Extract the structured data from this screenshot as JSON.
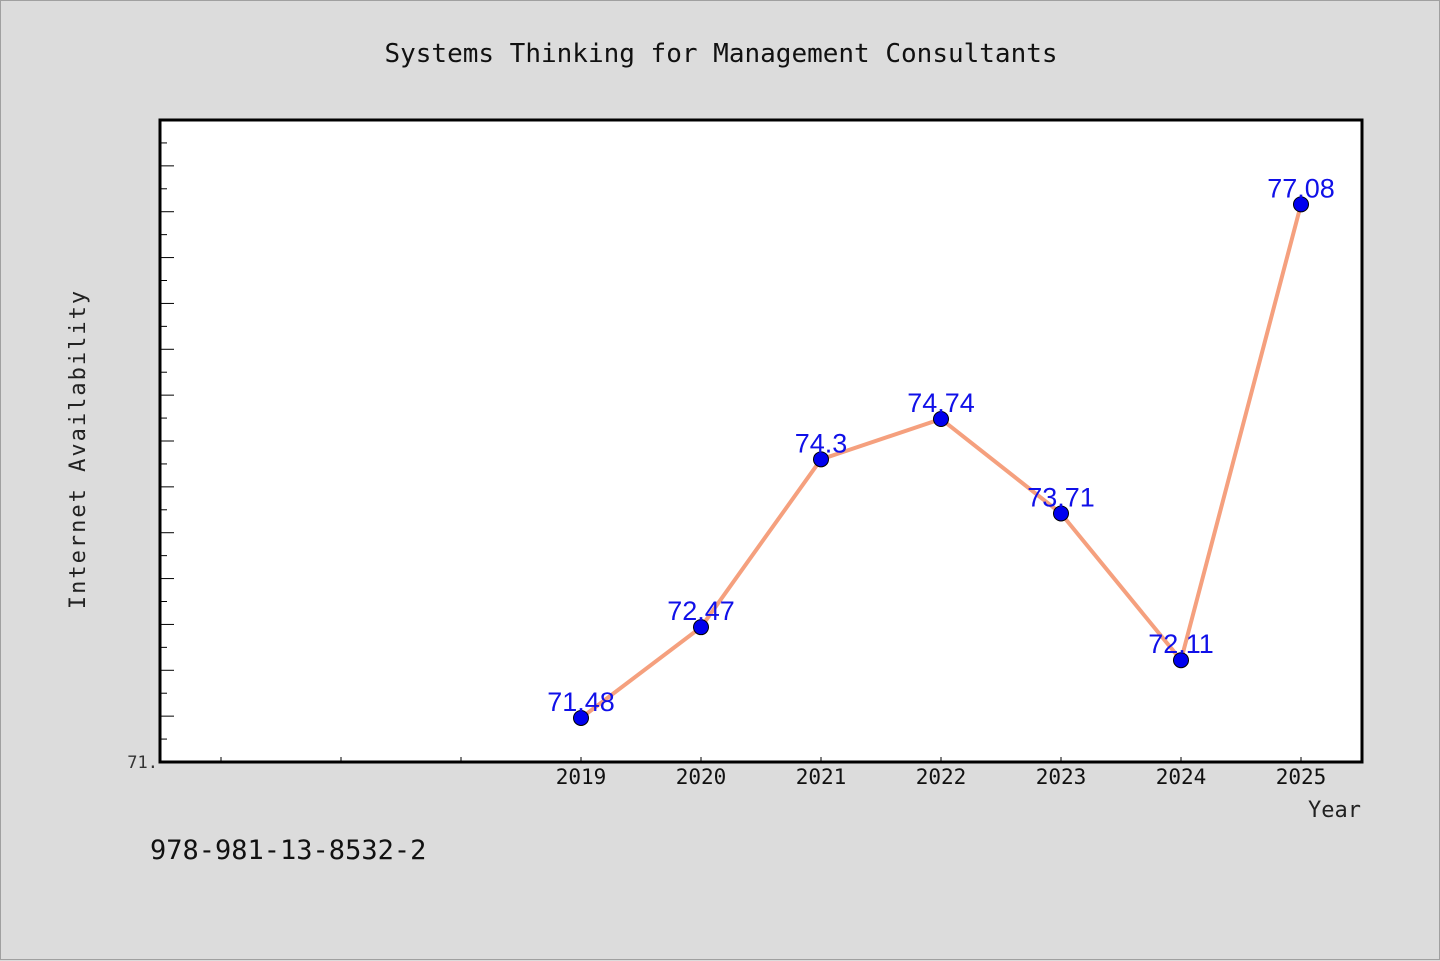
{
  "chart_data": {
    "type": "line",
    "title": "Systems Thinking for Management Consultants",
    "xlabel": "Year",
    "ylabel": "Internet Availability",
    "categories": [
      "2019",
      "2020",
      "2021",
      "2022",
      "2023",
      "2024",
      "2025"
    ],
    "series": [
      {
        "values": [
          71.48,
          72.47,
          74.3,
          74.74,
          73.71,
          72.11,
          77.08
        ],
        "labels": [
          "71.48",
          "72.47",
          "74.3",
          "74.74",
          "73.71",
          "72.11",
          "77.08"
        ]
      }
    ],
    "ylim": [
      71.0,
      78.0
    ],
    "y_tick_labels": [
      {
        "value": 71.0,
        "label": "71."
      }
    ],
    "grid": false,
    "legend": "none",
    "colors": {
      "line": "#f5a07e",
      "marker": "#0000ee",
      "data_label": "#1010e8",
      "background": "#dcdcdc",
      "plot_background": "#ffffff"
    }
  },
  "footer": {
    "isbn": "978-981-13-8532-2"
  }
}
